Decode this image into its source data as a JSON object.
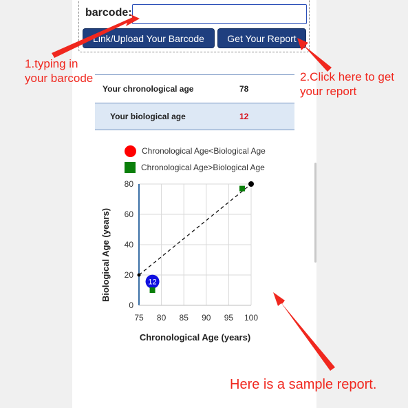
{
  "form": {
    "barcode_label": "barcode:",
    "barcode_value": "",
    "link_button_label": "Link/Upload Your Barcode",
    "report_button_label": "Get Your Report"
  },
  "annotations": {
    "step1": "1.typing in your barcode",
    "step2": "2.Click here to get your report",
    "sample": "Here is a sample report."
  },
  "age_table": {
    "chronological_label": "Your chronological age",
    "chronological_value": "78",
    "biological_label": "Your biological age",
    "biological_value": "12"
  },
  "legend": {
    "circle_label": "Chronological Age<Biological Age",
    "square_label": "Chronological Age>Biological Age"
  },
  "colors": {
    "annotation": "#f0271e",
    "button": "#1f3f7f",
    "legend_circle": "#ff0000",
    "legend_square": "#0a7f0a",
    "marker": "#1010e0",
    "biological_value": "#d8101a"
  },
  "chart_data": {
    "type": "scatter",
    "title": "",
    "xlabel": "Chronological Age (years)",
    "ylabel": "Biological Age (years)",
    "xlim": [
      75,
      100
    ],
    "ylim": [
      0,
      80
    ],
    "x_ticks": [
      75,
      80,
      85,
      90,
      95,
      100
    ],
    "y_ticks": [
      0,
      20,
      40,
      60,
      80
    ],
    "grid": true,
    "reference_line": {
      "style": "dashed",
      "from": [
        75,
        20
      ],
      "to": [
        100,
        80
      ]
    },
    "points": [
      {
        "x": 78,
        "y": 12,
        "shape": "marker",
        "label": "12"
      },
      {
        "x": 78,
        "y": 10,
        "shape": "square"
      },
      {
        "x": 98,
        "y": 77,
        "shape": "square"
      },
      {
        "x": 100,
        "y": 80,
        "shape": "dot"
      },
      {
        "x": 75,
        "y": 20,
        "shape": "small-dot"
      }
    ]
  }
}
